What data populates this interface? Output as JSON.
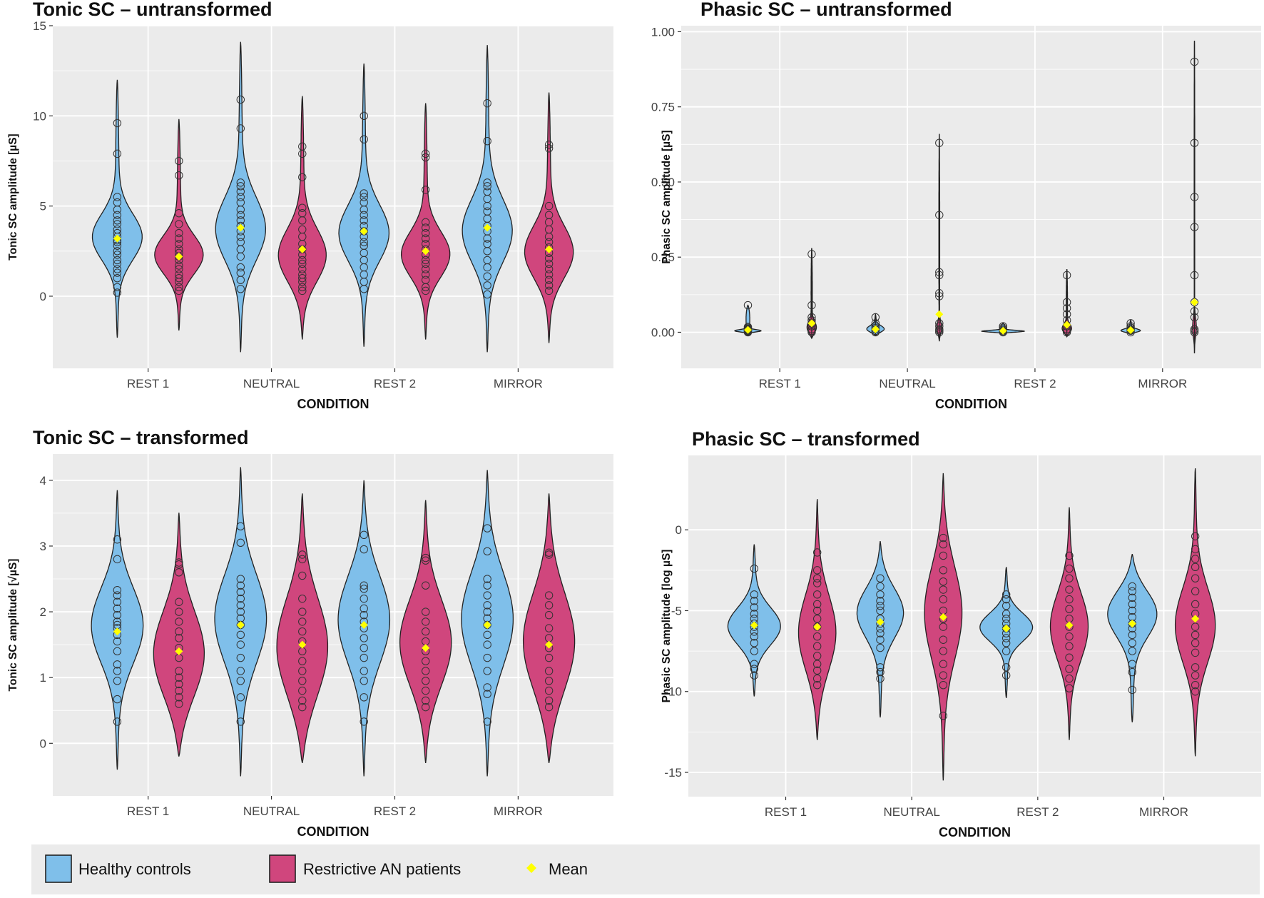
{
  "chart_data": [
    {
      "type": "violin",
      "title": "Tonic SC – untransformed",
      "xlabel": "CONDITION",
      "ylabel": "Tonic SC amplitude [µS]",
      "categories": [
        "REST 1",
        "NEUTRAL",
        "REST 2",
        "MIRROR"
      ],
      "yticks": [
        0,
        5,
        10,
        15
      ],
      "ylim": [
        -4,
        15
      ],
      "groups": [
        "Healthy controls",
        "Restrictive AN patients"
      ],
      "violins": [
        {
          "group": 0,
          "cat": 0,
          "min": -2.3,
          "max": 12.0,
          "peak": 3.2,
          "spread": 1.3,
          "width": 0.42,
          "mean": 3.2,
          "points": [
            0.2,
            0.5,
            1.0,
            1.3,
            1.5,
            1.8,
            2.0,
            2.3,
            2.5,
            2.8,
            3.0,
            3.1,
            3.3,
            3.5,
            3.7,
            4.0,
            4.2,
            4.5,
            4.8,
            5.2,
            5.5,
            7.9,
            9.6
          ]
        },
        {
          "group": 1,
          "cat": 0,
          "min": -1.9,
          "max": 9.8,
          "peak": 2.2,
          "spread": 1.1,
          "width": 0.42,
          "mean": 2.2,
          "points": [
            0.3,
            0.5,
            0.8,
            1.0,
            1.2,
            1.5,
            1.7,
            2.0,
            2.2,
            2.4,
            2.6,
            2.9,
            3.2,
            3.5,
            4.0,
            4.6,
            6.7,
            7.5
          ]
        },
        {
          "group": 0,
          "cat": 1,
          "min": -3.1,
          "max": 14.1,
          "peak": 3.6,
          "spread": 1.8,
          "width": 0.42,
          "mean": 3.8,
          "points": [
            0.4,
            0.9,
            1.3,
            1.6,
            2.2,
            2.6,
            3.0,
            3.3,
            3.6,
            3.9,
            4.2,
            4.5,
            4.8,
            5.2,
            5.5,
            5.8,
            6.1,
            6.3,
            9.3,
            10.9
          ]
        },
        {
          "group": 1,
          "cat": 1,
          "min": -2.4,
          "max": 11.1,
          "peak": 2.1,
          "spread": 1.5,
          "width": 0.42,
          "mean": 2.6,
          "points": [
            0.3,
            0.5,
            0.8,
            1.0,
            1.2,
            1.5,
            1.8,
            2.0,
            2.3,
            2.6,
            2.9,
            3.3,
            3.7,
            4.2,
            4.6,
            4.9,
            6.6,
            7.9,
            8.3
          ]
        },
        {
          "group": 0,
          "cat": 2,
          "min": -2.8,
          "max": 12.9,
          "peak": 3.4,
          "spread": 1.6,
          "width": 0.42,
          "mean": 3.6,
          "points": [
            0.4,
            0.8,
            1.2,
            1.6,
            2.0,
            2.4,
            2.8,
            3.0,
            3.3,
            3.6,
            3.9,
            4.2,
            4.5,
            4.8,
            5.2,
            5.5,
            5.7,
            8.7,
            10.0
          ]
        },
        {
          "group": 1,
          "cat": 2,
          "min": -2.4,
          "max": 10.7,
          "peak": 2.2,
          "spread": 1.3,
          "width": 0.42,
          "mean": 2.5,
          "points": [
            0.3,
            0.5,
            0.9,
            1.2,
            1.5,
            1.8,
            2.0,
            2.3,
            2.6,
            2.9,
            3.2,
            3.5,
            3.8,
            4.1,
            5.9,
            7.7,
            7.9
          ]
        },
        {
          "group": 0,
          "cat": 3,
          "min": -3.1,
          "max": 13.9,
          "peak": 3.5,
          "spread": 1.8,
          "width": 0.42,
          "mean": 3.8,
          "points": [
            0.1,
            0.6,
            1.1,
            1.6,
            2.0,
            2.5,
            2.9,
            3.2,
            3.6,
            3.9,
            4.3,
            4.7,
            5.0,
            5.4,
            5.8,
            6.1,
            6.3,
            8.6,
            10.7
          ]
        },
        {
          "group": 1,
          "cat": 3,
          "min": -2.6,
          "max": 11.3,
          "peak": 2.3,
          "spread": 1.5,
          "width": 0.42,
          "mean": 2.6,
          "points": [
            0.3,
            0.6,
            0.9,
            1.2,
            1.5,
            1.8,
            2.1,
            2.4,
            2.7,
            3.0,
            3.3,
            3.7,
            4.1,
            4.5,
            5.0,
            8.2,
            8.4
          ]
        }
      ]
    },
    {
      "type": "violin",
      "title": "Phasic SC – untransformed",
      "xlabel": "CONDITION",
      "ylabel": "Phasic SC amplitude [µS]",
      "categories": [
        "REST 1",
        "NEUTRAL",
        "REST 2",
        "MIRROR"
      ],
      "yticks": [
        0.0,
        0.25,
        0.5,
        0.75,
        1.0
      ],
      "ytickLabels": [
        "0.00",
        "0.25",
        "0.50",
        "0.75",
        "1.00"
      ],
      "ylim": [
        -0.12,
        1.02
      ],
      "groups": [
        "Healthy controls",
        "Restrictive AN patients"
      ],
      "violins": [
        {
          "group": 0,
          "cat": 0,
          "min": -0.005,
          "max": 0.09,
          "peak": 0.004,
          "spread": 0.004,
          "width": 0.42,
          "mean": 0.008,
          "points": [
            0.0,
            0.002,
            0.004,
            0.006,
            0.008,
            0.01,
            0.012,
            0.015,
            0.018,
            0.09
          ]
        },
        {
          "group": 1,
          "cat": 0,
          "min": -0.02,
          "max": 0.28,
          "peak": 0.01,
          "spread": 0.02,
          "width": 0.14,
          "mean": 0.03,
          "points": [
            0.0,
            0.005,
            0.01,
            0.02,
            0.03,
            0.04,
            0.05,
            0.09,
            0.26
          ]
        },
        {
          "group": 0,
          "cat": 1,
          "min": -0.01,
          "max": 0.06,
          "peak": 0.008,
          "spread": 0.012,
          "width": 0.16,
          "mean": 0.01,
          "points": [
            0.0,
            0.005,
            0.01,
            0.015,
            0.02,
            0.03,
            0.05
          ]
        },
        {
          "group": 1,
          "cat": 1,
          "min": -0.03,
          "max": 0.66,
          "peak": 0.01,
          "spread": 0.02,
          "width": 0.1,
          "mean": 0.06,
          "points": [
            0.0,
            0.005,
            0.01,
            0.02,
            0.03,
            0.12,
            0.13,
            0.19,
            0.2,
            0.39,
            0.63
          ]
        },
        {
          "group": 0,
          "cat": 2,
          "min": -0.005,
          "max": 0.03,
          "peak": 0.003,
          "spread": 0.003,
          "width": 0.42,
          "mean": 0.005,
          "points": [
            0.0,
            0.003,
            0.006,
            0.01,
            0.015,
            0.02
          ]
        },
        {
          "group": 1,
          "cat": 2,
          "min": -0.015,
          "max": 0.21,
          "peak": 0.008,
          "spread": 0.015,
          "width": 0.14,
          "mean": 0.025,
          "points": [
            0.0,
            0.005,
            0.01,
            0.02,
            0.04,
            0.06,
            0.08,
            0.1,
            0.19
          ]
        },
        {
          "group": 0,
          "cat": 3,
          "min": -0.005,
          "max": 0.04,
          "peak": 0.004,
          "spread": 0.006,
          "width": 0.2,
          "mean": 0.007,
          "points": [
            0.0,
            0.005,
            0.01,
            0.015,
            0.02,
            0.03
          ]
        },
        {
          "group": 1,
          "cat": 3,
          "min": -0.07,
          "max": 0.97,
          "peak": 0.01,
          "spread": 0.03,
          "width": 0.07,
          "mean": 0.1,
          "points": [
            0.0,
            0.005,
            0.01,
            0.05,
            0.07,
            0.1,
            0.19,
            0.35,
            0.45,
            0.63,
            0.9
          ]
        }
      ]
    },
    {
      "type": "violin",
      "title": "Tonic SC – transformed",
      "xlabel": "CONDITION",
      "ylabel": "Tonic SC amplitude [√µS]",
      "categories": [
        "REST 1",
        "NEUTRAL",
        "REST 2",
        "MIRROR"
      ],
      "yticks": [
        0,
        1,
        2,
        3,
        4
      ],
      "ylim": [
        -0.8,
        4.4
      ],
      "groups": [
        "Healthy controls",
        "Restrictive AN patients"
      ],
      "violins": [
        {
          "group": 0,
          "cat": 0,
          "min": -0.4,
          "max": 3.85,
          "peak": 1.8,
          "spread": 0.6,
          "width": 0.42,
          "mean": 1.7,
          "points": [
            0.33,
            0.67,
            0.95,
            1.1,
            1.2,
            1.4,
            1.55,
            1.65,
            1.75,
            1.8,
            1.85,
            1.95,
            2.05,
            2.15,
            2.25,
            2.33,
            2.8,
            3.1
          ]
        },
        {
          "group": 1,
          "cat": 0,
          "min": -0.2,
          "max": 3.5,
          "peak": 1.3,
          "spread": 0.7,
          "width": 0.42,
          "mean": 1.4,
          "points": [
            0.6,
            0.7,
            0.8,
            0.9,
            1.0,
            1.1,
            1.3,
            1.45,
            1.6,
            1.7,
            1.85,
            2.0,
            2.15,
            2.6,
            2.72,
            2.75
          ]
        },
        {
          "group": 0,
          "cat": 1,
          "min": -0.5,
          "max": 4.2,
          "peak": 1.9,
          "spread": 0.7,
          "width": 0.42,
          "mean": 1.8,
          "points": [
            0.33,
            0.7,
            0.95,
            1.1,
            1.3,
            1.5,
            1.65,
            1.8,
            1.9,
            2.0,
            2.1,
            2.2,
            2.3,
            2.4,
            2.5,
            3.05,
            3.3
          ]
        },
        {
          "group": 1,
          "cat": 1,
          "min": -0.3,
          "max": 3.8,
          "peak": 1.4,
          "spread": 0.8,
          "width": 0.42,
          "mean": 1.5,
          "points": [
            0.55,
            0.65,
            0.8,
            0.95,
            1.1,
            1.25,
            1.4,
            1.55,
            1.7,
            1.85,
            2.0,
            2.2,
            2.55,
            2.8,
            2.87
          ]
        },
        {
          "group": 0,
          "cat": 2,
          "min": -0.5,
          "max": 4.0,
          "peak": 1.9,
          "spread": 0.7,
          "width": 0.42,
          "mean": 1.8,
          "points": [
            0.33,
            0.7,
            0.95,
            1.1,
            1.3,
            1.45,
            1.6,
            1.75,
            1.85,
            1.95,
            2.05,
            2.2,
            2.35,
            2.4,
            2.95,
            3.17
          ]
        },
        {
          "group": 1,
          "cat": 2,
          "min": -0.3,
          "max": 3.7,
          "peak": 1.5,
          "spread": 0.7,
          "width": 0.42,
          "mean": 1.45,
          "points": [
            0.55,
            0.65,
            0.8,
            0.95,
            1.1,
            1.25,
            1.4,
            1.55,
            1.7,
            1.85,
            2.0,
            2.4,
            2.78,
            2.82
          ]
        },
        {
          "group": 0,
          "cat": 3,
          "min": -0.5,
          "max": 4.15,
          "peak": 1.9,
          "spread": 0.75,
          "width": 0.42,
          "mean": 1.8,
          "points": [
            0.33,
            0.75,
            0.85,
            1.1,
            1.3,
            1.5,
            1.65,
            1.8,
            1.9,
            2.0,
            2.1,
            2.25,
            2.4,
            2.5,
            2.92,
            3.27
          ]
        },
        {
          "group": 1,
          "cat": 3,
          "min": -0.3,
          "max": 3.8,
          "peak": 1.5,
          "spread": 0.8,
          "width": 0.42,
          "mean": 1.5,
          "points": [
            0.55,
            0.65,
            0.8,
            0.95,
            1.1,
            1.3,
            1.45,
            1.6,
            1.75,
            1.95,
            2.1,
            2.25,
            2.87,
            2.9
          ]
        }
      ]
    },
    {
      "type": "violin",
      "title": "Phasic SC – transformed",
      "xlabel": "CONDITION",
      "ylabel": "Phasic SC amplitude [log µS]",
      "categories": [
        "REST 1",
        "NEUTRAL",
        "REST 2",
        "MIRROR"
      ],
      "yticks": [
        -15,
        -10,
        -5,
        0
      ],
      "ylim": [
        -16.5,
        4.6
      ],
      "groups": [
        "Healthy controls",
        "Restrictive AN patients"
      ],
      "violins": [
        {
          "group": 0,
          "cat": 0,
          "min": -10.3,
          "max": -0.9,
          "peak": -6.0,
          "spread": 1.2,
          "width": 0.42,
          "mean": -5.9,
          "points": [
            -9.0,
            -8.6,
            -8.3,
            -7.5,
            -7.0,
            -6.6,
            -6.3,
            -6.0,
            -5.8,
            -5.5,
            -5.2,
            -4.8,
            -4.4,
            -4.0,
            -2.4
          ]
        },
        {
          "group": 1,
          "cat": 0,
          "min": -13.0,
          "max": 1.9,
          "peak": -6.5,
          "spread": 2.5,
          "width": 0.3,
          "mean": -6.0,
          "points": [
            -9.6,
            -9.2,
            -8.7,
            -8.3,
            -7.8,
            -7.2,
            -6.6,
            -6.0,
            -5.5,
            -5.0,
            -4.6,
            -4.0,
            -3.3,
            -3.0,
            -2.5,
            -1.4
          ]
        },
        {
          "group": 0,
          "cat": 1,
          "min": -11.6,
          "max": -0.7,
          "peak": -5.0,
          "spread": 1.6,
          "width": 0.38,
          "mean": -5.7,
          "points": [
            -9.2,
            -8.8,
            -8.5,
            -7.3,
            -6.8,
            -6.4,
            -6.1,
            -5.8,
            -5.5,
            -5.0,
            -4.7,
            -4.4,
            -4.0,
            -3.5,
            -3.0
          ]
        },
        {
          "group": 1,
          "cat": 1,
          "min": -15.5,
          "max": 3.5,
          "peak": -5.0,
          "spread": 3.0,
          "width": 0.3,
          "mean": -5.4,
          "points": [
            -11.5,
            -9.6,
            -9.0,
            -8.3,
            -7.5,
            -6.8,
            -6.0,
            -5.5,
            -5.0,
            -4.3,
            -3.7,
            -3.2,
            -2.5,
            -1.6,
            -0.9,
            -0.5
          ]
        },
        {
          "group": 0,
          "cat": 2,
          "min": -10.4,
          "max": -2.3,
          "peak": -6.0,
          "spread": 0.9,
          "width": 0.42,
          "mean": -6.1,
          "points": [
            -9.0,
            -8.5,
            -7.5,
            -7.0,
            -6.7,
            -6.4,
            -6.1,
            -5.8,
            -5.5,
            -5.2,
            -4.7,
            -4.3,
            -4.0
          ]
        },
        {
          "group": 1,
          "cat": 2,
          "min": -13.0,
          "max": 1.4,
          "peak": -6.0,
          "spread": 2.2,
          "width": 0.3,
          "mean": -5.9,
          "points": [
            -9.8,
            -9.2,
            -8.6,
            -7.9,
            -7.2,
            -6.6,
            -6.0,
            -5.5,
            -4.9,
            -4.3,
            -3.7,
            -3.0,
            -2.4,
            -1.6
          ]
        },
        {
          "group": 0,
          "cat": 3,
          "min": -11.9,
          "max": -1.5,
          "peak": -5.0,
          "spread": 1.5,
          "width": 0.42,
          "mean": -5.8,
          "points": [
            -9.9,
            -8.8,
            -8.3,
            -7.5,
            -7.0,
            -6.5,
            -6.1,
            -5.8,
            -5.4,
            -5.0,
            -4.6,
            -4.2,
            -3.8,
            -3.5
          ]
        },
        {
          "group": 1,
          "cat": 3,
          "min": -14.0,
          "max": 3.8,
          "peak": -6.0,
          "spread": 2.4,
          "width": 0.32,
          "mean": -5.5,
          "points": [
            -10.0,
            -9.6,
            -9.0,
            -8.5,
            -7.6,
            -7.0,
            -6.5,
            -6.0,
            -5.2,
            -4.6,
            -3.8,
            -3.0,
            -2.3,
            -1.8,
            -1.2,
            -0.4
          ]
        }
      ]
    }
  ],
  "legend": {
    "items": [
      {
        "label": "Healthy controls",
        "color": "#7fbfea"
      },
      {
        "label": "Restrictive AN patients",
        "color": "#d0467d"
      },
      {
        "label": "Mean",
        "color": "#ffff00"
      }
    ]
  },
  "colors": {
    "healthy": "#7fbfea",
    "patients": "#d0467d",
    "mean": "#ffff00",
    "panel_bg": "#ebebeb",
    "grid": "#ffffff"
  }
}
